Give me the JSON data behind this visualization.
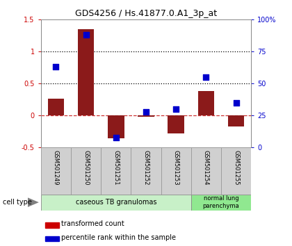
{
  "title": "GDS4256 / Hs.41877.0.A1_3p_at",
  "categories": [
    "GSM501249",
    "GSM501250",
    "GSM501251",
    "GSM501252",
    "GSM501253",
    "GSM501254",
    "GSM501255"
  ],
  "bar_values": [
    0.27,
    1.35,
    -0.35,
    -0.02,
    -0.28,
    0.38,
    -0.17
  ],
  "percentile_values": [
    63,
    88,
    8,
    28,
    30,
    55,
    35
  ],
  "bar_color": "#8B1A1A",
  "dot_color": "#0000CC",
  "ylim_left": [
    -0.5,
    1.5
  ],
  "ylim_right": [
    0,
    100
  ],
  "hlines": [
    0.5,
    1.0
  ],
  "group1_label": "caseous TB granulomas",
  "group2_label": "normal lung\nparenchyma",
  "group1_color": "#c8f0c8",
  "group2_color": "#90e890",
  "sample_box_color": "#d0d0d0",
  "cell_type_label": "cell type",
  "legend_label_bar": "transformed count",
  "legend_label_dot": "percentile rank within the sample",
  "bar_width": 0.55,
  "dot_size": 35,
  "tick_color_left": "#CC0000",
  "tick_color_right": "#0000CC",
  "dashed_line_color": "#CC3333",
  "spine_color": "#888888"
}
